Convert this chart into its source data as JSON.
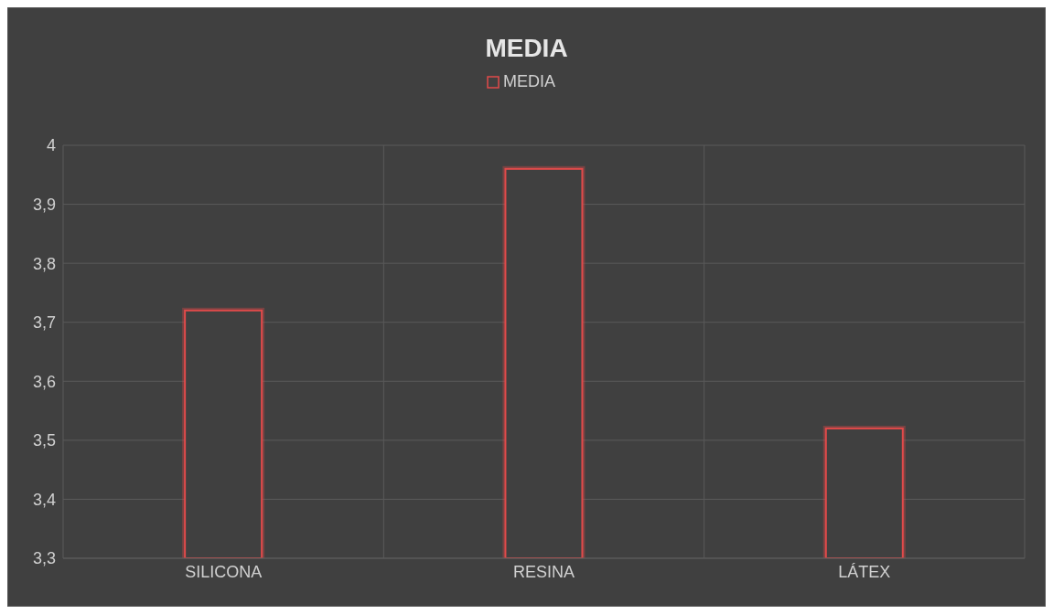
{
  "chart_data": {
    "type": "bar",
    "title": "MEDIA",
    "categories": [
      "SILICONA",
      "RESINA",
      "LÁTEX"
    ],
    "series": [
      {
        "name": "MEDIA",
        "color": "#e04a4a",
        "values": [
          3.72,
          3.96,
          3.52
        ]
      }
    ],
    "ylim": [
      3.3,
      4
    ],
    "yticks": [
      {
        "value": 3.3,
        "label": "3,3"
      },
      {
        "value": 3.4,
        "label": "3,4"
      },
      {
        "value": 3.5,
        "label": "3,5"
      },
      {
        "value": 3.6,
        "label": "3,6"
      },
      {
        "value": 3.7,
        "label": "3,7"
      },
      {
        "value": 3.8,
        "label": "3,8"
      },
      {
        "value": 3.9,
        "label": "3,9"
      },
      {
        "value": 4,
        "label": "4"
      }
    ],
    "grid": true,
    "legend": "top"
  }
}
